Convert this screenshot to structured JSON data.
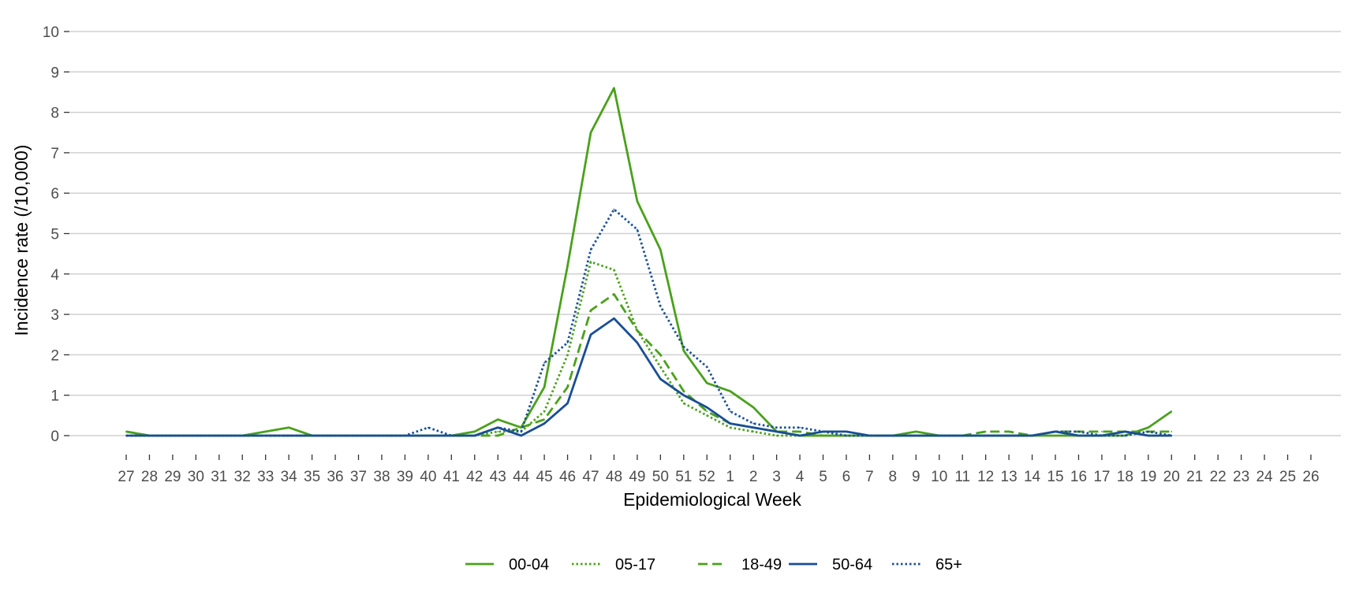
{
  "chart_data": {
    "type": "line",
    "title": "",
    "xlabel": "Epidemiological Week",
    "ylabel": "Incidence rate (/10,000)",
    "ylim": [
      0,
      10
    ],
    "yticks": [
      "0",
      "1",
      "2",
      "3",
      "4",
      "5",
      "6",
      "7",
      "8",
      "9",
      "10"
    ],
    "grid": "horizontal",
    "legend_position": "bottom",
    "categories": [
      "27",
      "28",
      "29",
      "30",
      "31",
      "32",
      "33",
      "34",
      "35",
      "36",
      "37",
      "38",
      "39",
      "40",
      "41",
      "42",
      "43",
      "44",
      "45",
      "46",
      "47",
      "48",
      "49",
      "50",
      "51",
      "52",
      "1",
      "2",
      "3",
      "4",
      "5",
      "6",
      "7",
      "8",
      "9",
      "10",
      "11",
      "12",
      "13",
      "14",
      "15",
      "16",
      "17",
      "18",
      "19",
      "20",
      "21",
      "22",
      "23",
      "24",
      "25",
      "26"
    ],
    "series": [
      {
        "name": "00-04",
        "color": "#4aa11b",
        "dash": "solid",
        "values": [
          0.1,
          0,
          0,
          0,
          0,
          0,
          0.1,
          0.2,
          0,
          0,
          0,
          0,
          0,
          0,
          0,
          0.1,
          0.4,
          0.2,
          1.2,
          4.2,
          7.5,
          8.6,
          5.8,
          4.6,
          2.1,
          1.3,
          1.1,
          0.7,
          0.1,
          0,
          0,
          0,
          0,
          0,
          0.1,
          0,
          0,
          0,
          0,
          0,
          0,
          0,
          0,
          0,
          0.2,
          0.6,
          null,
          null,
          null,
          null,
          null,
          null
        ]
      },
      {
        "name": "05-17",
        "color": "#4aa11b",
        "dash": "dotted",
        "values": [
          0,
          0,
          0,
          0,
          0,
          0,
          0,
          0,
          0,
          0,
          0,
          0,
          0,
          0,
          0,
          0,
          0.1,
          0.1,
          0.6,
          2.0,
          4.3,
          4.1,
          2.6,
          1.7,
          0.8,
          0.5,
          0.2,
          0.1,
          0,
          0,
          0,
          0,
          0,
          0,
          0,
          0,
          0,
          0,
          0,
          0,
          0.1,
          0,
          0,
          0.1,
          0,
          0,
          null,
          null,
          null,
          null,
          null,
          null
        ]
      },
      {
        "name": "18-49",
        "color": "#4aa11b",
        "dash": "dashed",
        "values": [
          0.1,
          0,
          0,
          0,
          0,
          0,
          0,
          0,
          0,
          0,
          0,
          0,
          0,
          0,
          0,
          0,
          0,
          0.2,
          0.4,
          1.2,
          3.1,
          3.5,
          2.6,
          2.0,
          1.1,
          0.6,
          0.3,
          0.2,
          0.1,
          0.1,
          0,
          0,
          0,
          0,
          0,
          0,
          0,
          0.1,
          0.1,
          0,
          0.1,
          0.1,
          0.1,
          0.1,
          0.1,
          0.1,
          null,
          null,
          null,
          null,
          null,
          null
        ]
      },
      {
        "name": "50-64",
        "color": "#1a4e96",
        "dash": "solid",
        "values": [
          0,
          0,
          0,
          0,
          0,
          0,
          0,
          0,
          0,
          0,
          0,
          0,
          0,
          0,
          0,
          0,
          0.2,
          0,
          0.3,
          0.8,
          2.5,
          2.9,
          2.3,
          1.4,
          1.0,
          0.7,
          0.3,
          0.2,
          0.1,
          0,
          0.1,
          0.1,
          0,
          0,
          0,
          0,
          0,
          0,
          0,
          0,
          0.1,
          0,
          0,
          0.1,
          0,
          0,
          null,
          null,
          null,
          null,
          null,
          null
        ]
      },
      {
        "name": "65+",
        "color": "#1a4e96",
        "dash": "dotted",
        "values": [
          0,
          0,
          0,
          0,
          0,
          0,
          0,
          0,
          0,
          0,
          0,
          0,
          0,
          0.2,
          0,
          0,
          0.2,
          0.1,
          1.8,
          2.3,
          4.6,
          5.6,
          5.1,
          3.2,
          2.2,
          1.7,
          0.6,
          0.3,
          0.2,
          0.2,
          0.1,
          0,
          0,
          0,
          0,
          0,
          0,
          0,
          0,
          0,
          0.1,
          0.1,
          0,
          0,
          0.1,
          0,
          null,
          null,
          null,
          null,
          null,
          null
        ]
      }
    ]
  }
}
